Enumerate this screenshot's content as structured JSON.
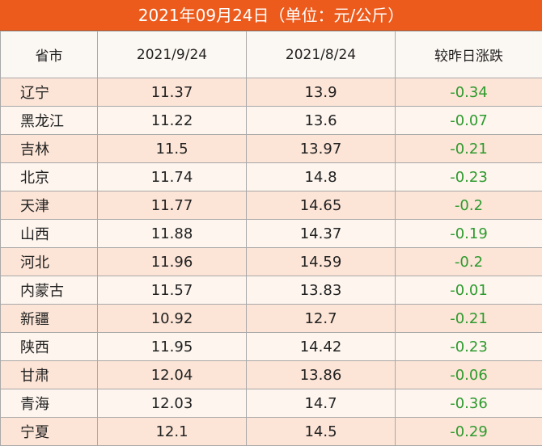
{
  "title": "2021年09月24日（单位：元/公斤）",
  "headers": [
    "省市",
    "2021/9/24",
    "2021/8/24",
    "较昨日涨跌"
  ],
  "rows": [
    [
      "辽宁",
      "11.37",
      "13.9",
      "-0.34"
    ],
    [
      "黑龙江",
      "11.22",
      "13.6",
      "-0.07"
    ],
    [
      "吉林",
      "11.5",
      "13.97",
      "-0.21"
    ],
    [
      "北京",
      "11.74",
      "14.8",
      "-0.23"
    ],
    [
      "天津",
      "11.77",
      "14.65",
      "-0.2"
    ],
    [
      "山西",
      "11.88",
      "14.37",
      "-0.19"
    ],
    [
      "河北",
      "11.96",
      "14.59",
      "-0.2"
    ],
    [
      "内蒙古",
      "11.57",
      "13.83",
      "-0.01"
    ],
    [
      "新疆",
      "10.92",
      "12.7",
      "-0.21"
    ],
    [
      "陕西",
      "11.95",
      "14.42",
      "-0.23"
    ],
    [
      "甘肃",
      "12.04",
      "13.86",
      "-0.06"
    ],
    [
      "青海",
      "12.03",
      "14.7",
      "-0.36"
    ],
    [
      "宁夏",
      "12.1",
      "14.5",
      "-0.29"
    ]
  ],
  "colors": {
    "title_bg": "#ec5a1c",
    "row_odd": "#fce4d6",
    "row_even": "#fdf5ee",
    "change_text": "#2e9a2e"
  }
}
